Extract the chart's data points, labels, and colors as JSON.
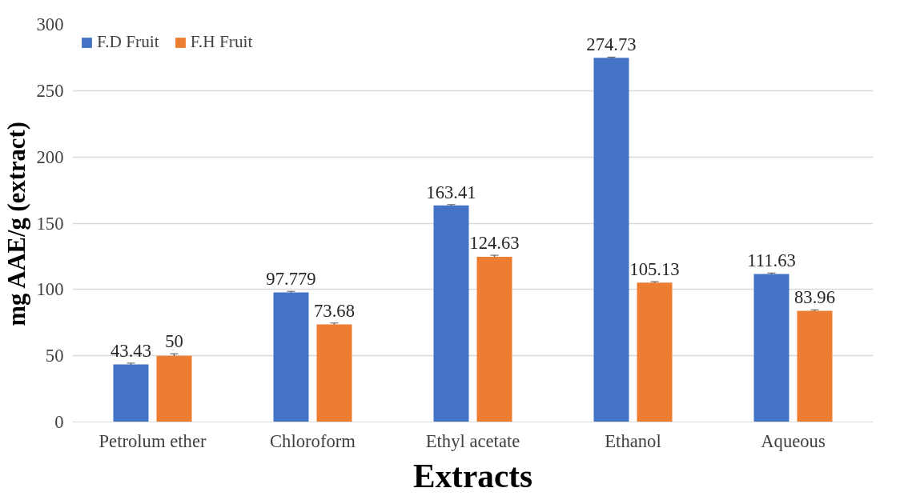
{
  "chart_data": {
    "type": "bar",
    "xlabel": "Extracts",
    "ylabel": "mg AAE/g (extract)",
    "categories": [
      "Petrolum ether",
      "Chloroform",
      "Ethyl acetate",
      "Ethanol",
      "Aqueous"
    ],
    "series": [
      {
        "name": "F.D Fruit",
        "color": "#4472c4",
        "values": [
          43.43,
          97.779,
          163.41,
          274.73,
          111.63
        ],
        "errors": [
          1,
          0.8,
          0.6,
          0.6,
          0.8
        ]
      },
      {
        "name": "F.H Fruit",
        "color": "#ed7d31",
        "values": [
          50,
          73.68,
          124.63,
          105.13,
          83.96
        ],
        "errors": [
          1.5,
          1,
          1.2,
          0.8,
          0.7
        ]
      }
    ],
    "ylim": [
      0,
      300
    ],
    "yticks": [
      0,
      50,
      100,
      150,
      200,
      250,
      300
    ],
    "grid": "y",
    "legend": "top left",
    "data_labels": true
  }
}
